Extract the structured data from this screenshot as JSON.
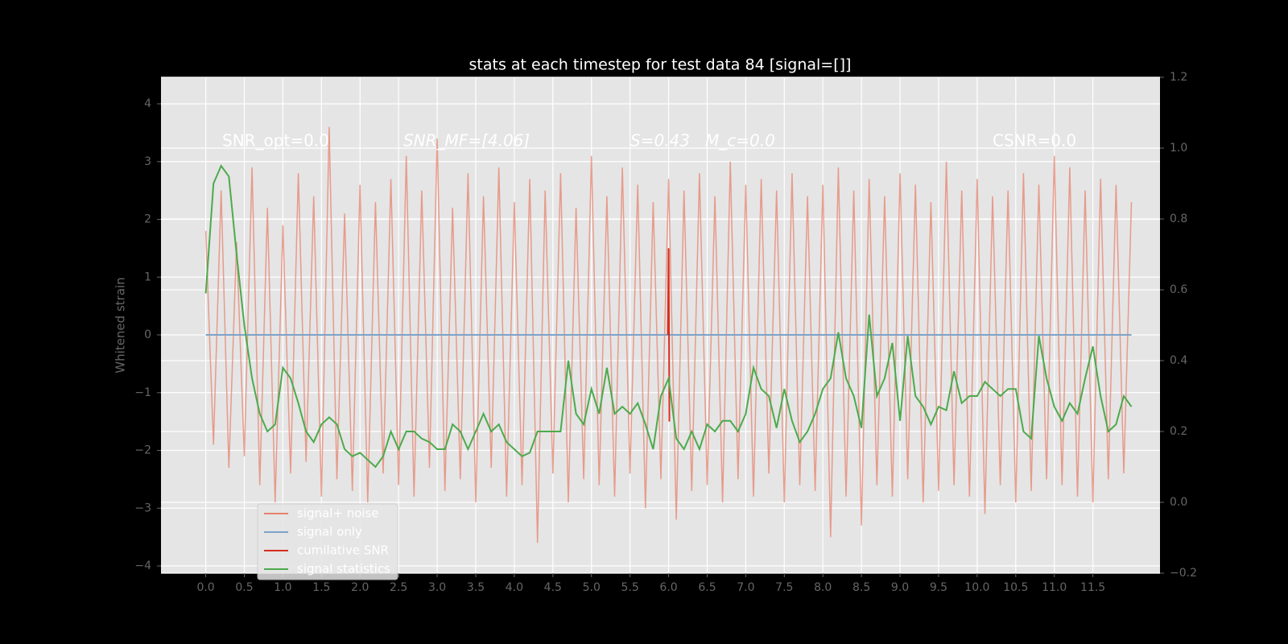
{
  "chart_data": {
    "type": "line",
    "title": "stats at each timestep for test data 84 [signal=[]]",
    "y_label": "Whitened strain",
    "annotations": [
      "SNR_opt=0.0",
      "SNR_MF=[4.06]",
      "S=0.43",
      "M_c=0.0",
      "CSNR=0.0"
    ],
    "x": [
      0,
      0.1,
      0.2,
      0.3,
      0.4,
      0.5,
      0.6,
      0.7,
      0.8,
      0.9,
      1,
      1.1,
      1.2,
      1.3,
      1.4,
      1.5,
      1.6,
      1.7,
      1.8,
      1.9,
      2,
      2.1,
      2.2,
      2.3,
      2.4,
      2.5,
      2.6,
      2.7,
      2.8,
      2.9,
      3,
      3.1,
      3.2,
      3.3,
      3.4,
      3.5,
      3.6,
      3.7,
      3.8,
      3.9,
      4,
      4.1,
      4.2,
      4.3,
      4.4,
      4.5,
      4.6,
      4.7,
      4.8,
      4.9,
      5,
      5.1,
      5.2,
      5.3,
      5.4,
      5.5,
      5.6,
      5.7,
      5.8,
      5.9,
      6,
      6.1,
      6.2,
      6.3,
      6.4,
      6.5,
      6.6,
      6.7,
      6.8,
      6.9,
      7,
      7.1,
      7.2,
      7.3,
      7.4,
      7.5,
      7.6,
      7.7,
      7.8,
      7.9,
      8,
      8.1,
      8.2,
      8.3,
      8.4,
      8.5,
      8.6,
      8.7,
      8.8,
      8.9,
      9,
      9.1,
      9.2,
      9.3,
      9.4,
      9.5,
      9.6,
      9.7,
      9.8,
      9.9,
      10,
      10.1,
      10.2,
      10.3,
      10.4,
      10.5,
      10.6,
      10.7,
      10.8,
      10.9,
      11,
      11.1,
      11.2,
      11.3,
      11.4,
      11.5,
      11.6,
      11.7,
      11.8,
      11.9,
      12
    ],
    "series": [
      {
        "name": "signal+ noise",
        "color": "#e5826c",
        "values": [
          1.8,
          -1.9,
          2.5,
          -2.3,
          1.6,
          -2.1,
          2.9,
          -2.6,
          2.2,
          -2.9,
          1.9,
          -2.4,
          2.8,
          -2.2,
          2.4,
          -2.8,
          3.6,
          -2.5,
          2.1,
          -2.7,
          2.6,
          -2.9,
          2.3,
          -2.4,
          2.7,
          -2.6,
          3.1,
          -2.8,
          2.5,
          -2.3,
          3.4,
          -2.7,
          2.2,
          -2.5,
          2.8,
          -2.9,
          2.4,
          -2.3,
          2.9,
          -2.8,
          2.3,
          -2.6,
          2.7,
          -3.6,
          2.5,
          -2.4,
          2.8,
          -2.9,
          2.2,
          -2.5,
          3.1,
          -2.6,
          2.4,
          -2.8,
          2.9,
          -2.4,
          2.6,
          -3.0,
          2.3,
          -2.5,
          2.7,
          -3.2,
          2.5,
          -2.7,
          2.8,
          -2.6,
          2.4,
          -2.9,
          3.0,
          -2.5,
          2.6,
          -2.8,
          2.7,
          -2.4,
          2.5,
          -2.9,
          2.8,
          -2.6,
          2.4,
          -2.7,
          2.6,
          -3.5,
          2.9,
          -2.8,
          2.5,
          -3.3,
          2.7,
          -2.6,
          2.4,
          -2.8,
          2.8,
          -2.5,
          2.6,
          -2.9,
          2.3,
          -2.7,
          3.0,
          -2.6,
          2.5,
          -2.8,
          2.7,
          -3.1,
          2.4,
          -2.6,
          2.5,
          -2.9,
          2.8,
          -2.7,
          2.6,
          -2.5,
          3.1,
          -2.6,
          2.9,
          -2.8,
          2.5,
          -2.9,
          2.7,
          -2.5,
          2.6,
          -2.4,
          2.3
        ]
      },
      {
        "name": "signal only",
        "color": "#7ea3c8",
        "x": [
          0,
          12
        ],
        "values": [
          0,
          0
        ]
      },
      {
        "name": "cumilative SNR",
        "color": "#d62d1f",
        "x": [
          5.99,
          6.0,
          6.01
        ],
        "values": [
          0,
          1.5,
          -1.5
        ]
      },
      {
        "name": "signal statistics",
        "color": "#4caa4c",
        "axis": "y2",
        "values": [
          0.59,
          0.9,
          0.95,
          0.92,
          0.7,
          0.5,
          0.35,
          0.25,
          0.2,
          0.22,
          0.38,
          0.35,
          0.28,
          0.2,
          0.17,
          0.22,
          0.24,
          0.22,
          0.15,
          0.13,
          0.14,
          0.12,
          0.1,
          0.13,
          0.2,
          0.15,
          0.2,
          0.2,
          0.18,
          0.17,
          0.15,
          0.15,
          0.22,
          0.2,
          0.15,
          0.2,
          0.25,
          0.2,
          0.22,
          0.17,
          0.15,
          0.13,
          0.14,
          0.2,
          0.2,
          0.2,
          0.2,
          0.4,
          0.25,
          0.22,
          0.32,
          0.25,
          0.38,
          0.25,
          0.27,
          0.25,
          0.28,
          0.22,
          0.15,
          0.3,
          0.35,
          0.18,
          0.15,
          0.2,
          0.15,
          0.22,
          0.2,
          0.23,
          0.23,
          0.2,
          0.25,
          0.38,
          0.32,
          0.3,
          0.21,
          0.32,
          0.23,
          0.17,
          0.2,
          0.25,
          0.32,
          0.35,
          0.48,
          0.35,
          0.3,
          0.21,
          0.53,
          0.3,
          0.35,
          0.45,
          0.23,
          0.47,
          0.3,
          0.27,
          0.22,
          0.27,
          0.26,
          0.37,
          0.28,
          0.3,
          0.3,
          0.34,
          0.32,
          0.3,
          0.32,
          0.32,
          0.2,
          0.18,
          0.47,
          0.35,
          0.27,
          0.23,
          0.28,
          0.25,
          0.35,
          0.44,
          0.3,
          0.2,
          0.22,
          0.3,
          0.27
        ]
      }
    ],
    "xlim": [
      -0.58,
      12.37
    ],
    "xticks": [
      {
        "value": 0,
        "label": "0.0"
      },
      0.5,
      {
        "value": 1,
        "label": "1.0"
      },
      1.5,
      {
        "value": 2,
        "label": "2.0"
      },
      2.5,
      {
        "value": 3,
        "label": "3.0"
      },
      3.5,
      {
        "value": 4,
        "label": "4.0"
      },
      4.5,
      {
        "value": 5,
        "label": "5.0"
      },
      5.5,
      {
        "value": 6,
        "label": "6.0"
      },
      6.5,
      {
        "value": 7,
        "label": "7.0"
      },
      7.5,
      {
        "value": 8,
        "label": "8.0"
      },
      8.5,
      {
        "value": 9,
        "label": "9.0"
      },
      9.5,
      {
        "value": 10,
        "label": "10.0"
      },
      10.5,
      {
        "value": 11,
        "label": "11.0"
      },
      11.5
    ],
    "ylim": [
      -4.125,
      4.46
    ],
    "yticks": [
      {
        "value": -4,
        "label": "−4"
      },
      {
        "value": -3,
        "label": "−3"
      },
      {
        "value": -2,
        "label": "−2"
      },
      {
        "value": -1,
        "label": "−1"
      },
      0,
      1,
      2,
      3,
      4
    ],
    "y2lim": [
      -0.2,
      1.2
    ],
    "y2ticks": [
      {
        "value": -0.2,
        "label": "−0.2"
      },
      {
        "value": 0,
        "label": "0.0"
      },
      0.2,
      0.4,
      0.6,
      0.8,
      {
        "value": 1,
        "label": "1.0"
      },
      1.2
    ],
    "grid": true,
    "legend": "lower left"
  }
}
